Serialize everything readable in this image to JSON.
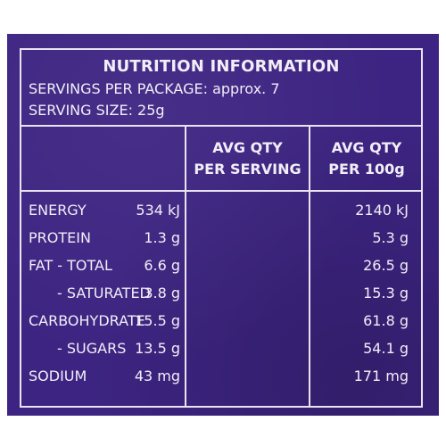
{
  "panel": {
    "title": "NUTRITION INFORMATION",
    "servings_per_package": "SERVINGS PER PACKAGE: approx. 7",
    "serving_size": "SERVING SIZE: 25g",
    "columns": [
      {
        "line1": "AVG QTY",
        "line2": "PER SERVING"
      },
      {
        "line1": "AVG QTY",
        "line2": "PER 100g"
      }
    ],
    "rows": [
      {
        "name": "ENERGY",
        "per_serving": "534 kJ",
        "per_100g": "2140 kJ"
      },
      {
        "name": "PROTEIN",
        "per_serving": "1.3 g",
        "per_100g": "5.3 g"
      },
      {
        "name": "FAT - TOTAL",
        "per_serving": "6.6 g",
        "per_100g": "26.5 g"
      },
      {
        "name": "- SATURATED",
        "per_serving": "3.8 g",
        "per_100g": "15.3 g"
      },
      {
        "name": "CARBOHYDRATE",
        "per_serving": "15.5 g",
        "per_100g": "61.8 g"
      },
      {
        "name": "- SUGARS",
        "per_serving": "13.5 g",
        "per_100g": "54.1 g"
      },
      {
        "name": "SODIUM",
        "per_serving": "43 mg",
        "per_100g": "171 mg"
      }
    ]
  },
  "colors": {
    "background": "#3d2482",
    "text": "#f2eef8",
    "lines": "#e9e3f2"
  }
}
